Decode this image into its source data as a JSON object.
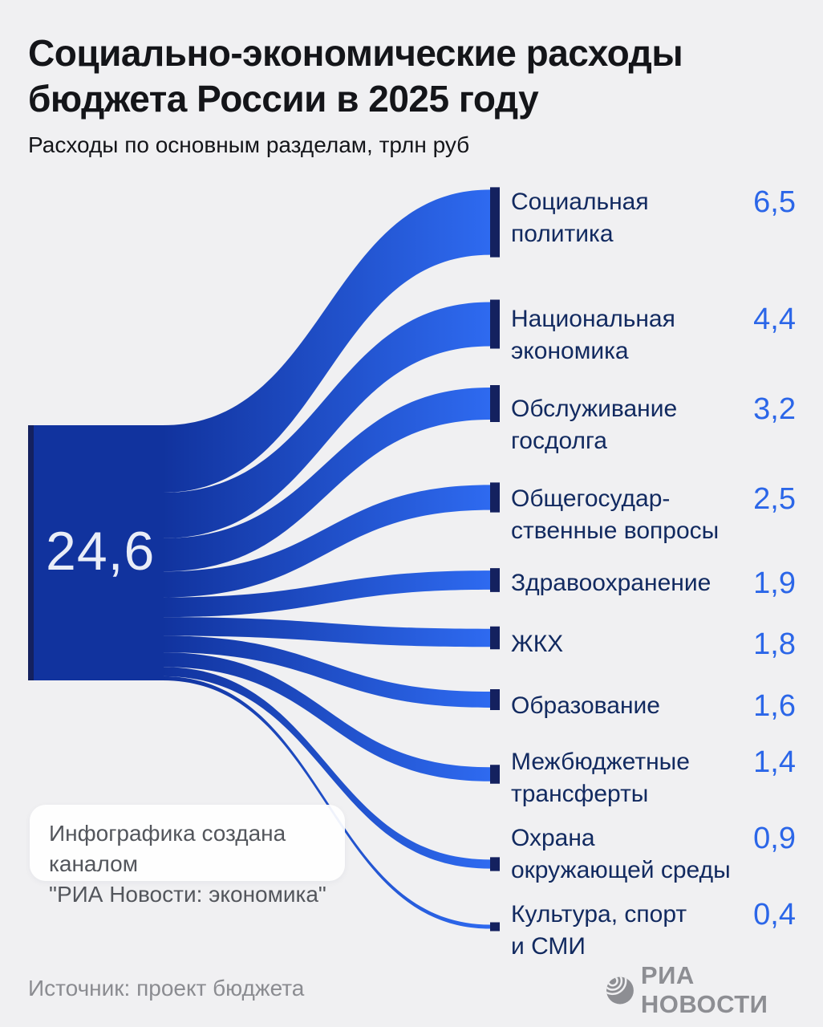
{
  "header": {
    "title_line1": "Социально-экономические расходы",
    "title_line2": "бюджета России в 2025 году",
    "subtitle": "Расходы по основным разделам, трлн руб"
  },
  "chart_data": {
    "type": "sankey",
    "title": "Социально-экономические расходы бюджета России в 2025 году",
    "subtitle": "Расходы по основным разделам, трлн руб",
    "unit": "трлн руб",
    "source_node": {
      "total": 24.6,
      "value_text": "24,6"
    },
    "items": [
      {
        "label": "Социальная политика",
        "label_lines": [
          "Социальная",
          "политика"
        ],
        "value": 6.5,
        "value_text": "6,5"
      },
      {
        "label": "Национальная экономика",
        "label_lines": [
          "Национальная",
          "экономика"
        ],
        "value": 4.4,
        "value_text": "4,4"
      },
      {
        "label": "Обслуживание госдолга",
        "label_lines": [
          "Обслуживание",
          "госдолга"
        ],
        "value": 3.2,
        "value_text": "3,2"
      },
      {
        "label": "Общегосударственные вопросы",
        "label_lines": [
          "Общегосудар-",
          "ственные вопросы"
        ],
        "value": 2.5,
        "value_text": "2,5"
      },
      {
        "label": "Здравоохранение",
        "label_lines": [
          "Здравоохранение"
        ],
        "value": 1.9,
        "value_text": "1,9"
      },
      {
        "label": "ЖКХ",
        "label_lines": [
          "ЖКХ"
        ],
        "value": 1.8,
        "value_text": "1,8"
      },
      {
        "label": "Образование",
        "label_lines": [
          "Образование"
        ],
        "value": 1.6,
        "value_text": "1,6"
      },
      {
        "label": "Межбюджетные трансферты",
        "label_lines": [
          "Межбюджетные",
          "трансферты"
        ],
        "value": 1.4,
        "value_text": "1,4"
      },
      {
        "label": "Охрана окружающей среды",
        "label_lines": [
          "Охрана",
          "окружающей среды"
        ],
        "value": 0.9,
        "value_text": "0,9"
      },
      {
        "label": "Культура, спорт и СМИ",
        "label_lines": [
          "Культура, спорт",
          "и СМИ"
        ],
        "value": 0.4,
        "value_text": "0,4"
      }
    ],
    "colors": {
      "flow_start": "#11339e",
      "flow_end": "#2e6af0",
      "end_cap": "#14215f",
      "label_text": "#122a60",
      "value_text": "#2b66e8",
      "background": "#f0f0f2"
    }
  },
  "note": {
    "line1": "Инфографика создана каналом",
    "line2": "\"РИА Новости: экономика\""
  },
  "footer": {
    "source": "Источник: проект бюджета",
    "brand": "РИА НОВОСТИ"
  }
}
